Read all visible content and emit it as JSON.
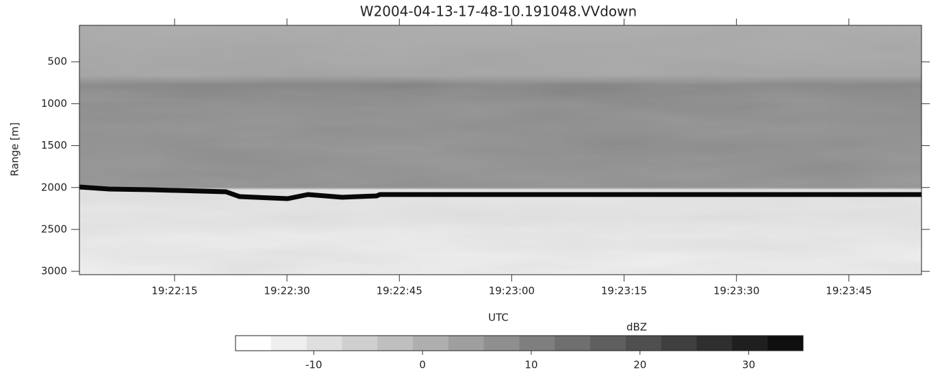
{
  "chart_data": {
    "type": "heatmap",
    "title": "W2004-04-13-17-48-10.191048.VVdown",
    "x_label": "UTC",
    "y_label": "Range [m]",
    "xlim": [
      69722.3,
      69834.7
    ],
    "xticks": [
      {
        "value": 69735,
        "label": "19:22:15"
      },
      {
        "value": 69750,
        "label": "19:22:30"
      },
      {
        "value": 69765,
        "label": "19:22:45"
      },
      {
        "value": 69780,
        "label": "19:23:00"
      },
      {
        "value": 69795,
        "label": "19:23:15"
      },
      {
        "value": 69810,
        "label": "19:23:30"
      },
      {
        "value": 69825,
        "label": "19:23:45"
      }
    ],
    "ylim": [
      3040,
      65
    ],
    "yticks": [
      500,
      1000,
      1500,
      2000,
      2500,
      3000
    ],
    "colorbar": {
      "label": "dBZ",
      "lim": [
        -17.2,
        35
      ],
      "ticks": [
        -10,
        0,
        10,
        20,
        30
      ],
      "colors": [
        "#ffffff",
        "#efefef",
        "#dfdfdf",
        "#cfcfcf",
        "#bfbfbf",
        "#afafaf",
        "#9f9f9f",
        "#8f8f8f",
        "#7f7f7f",
        "#6f6f6f",
        "#5f5f5f",
        "#4f4f4f",
        "#3f3f3f",
        "#2f2f2f",
        "#1f1f1f",
        "#0f0f0f"
      ]
    }
  }
}
